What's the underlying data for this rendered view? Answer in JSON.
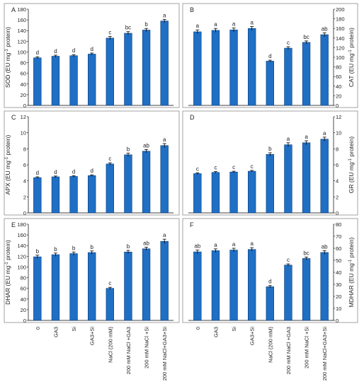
{
  "categories": [
    "0",
    "GA3",
    "Si",
    "GA3+Si",
    "NaCl (200 mM)",
    "200 mM NaCl +GA3",
    "200 mM NaCl +Si",
    "200 mM NaCl+GA3+Si"
  ],
  "colors": {
    "bar": "#1f6fc4",
    "bar_edge": "#0d3f7a",
    "frame": "#8c8c8c",
    "text": "#222222"
  },
  "chart_data": [
    {
      "type": "bar",
      "panel": "A",
      "side": "left",
      "ylabel_main": "SOD (EU mg",
      "ylabel_sup": "-1",
      "ylabel_tail": " protein)",
      "ylim": [
        0,
        180
      ],
      "yticks": [
        0,
        20,
        40,
        60,
        80,
        100,
        120,
        140,
        160,
        180
      ],
      "values": [
        89,
        92,
        93,
        96,
        126,
        135,
        141,
        158
      ],
      "errors": [
        2,
        2,
        2,
        2,
        3,
        3,
        3,
        3
      ],
      "letters": [
        "d",
        "d",
        "d",
        "d",
        "c",
        "bc",
        "b",
        "a"
      ]
    },
    {
      "type": "bar",
      "panel": "B",
      "side": "right",
      "ylabel_main": "CAT (EU mg",
      "ylabel_sup": "-1",
      "ylabel_tail": " protein)",
      "ylim": [
        0,
        200
      ],
      "yticks": [
        0,
        20,
        40,
        60,
        80,
        100,
        120,
        140,
        160,
        180,
        200
      ],
      "values": [
        153,
        156,
        157,
        160,
        92,
        119,
        131,
        147
      ],
      "errors": [
        4,
        4,
        4,
        4,
        2,
        3,
        3,
        4
      ],
      "letters": [
        "a",
        "a",
        "a",
        "a",
        "d",
        "c",
        "bc",
        "ab"
      ]
    },
    {
      "type": "bar",
      "panel": "C",
      "side": "left",
      "ylabel_main": "APX (EU mg",
      "ylabel_sup": "-1",
      "ylabel_tail": " protein)",
      "ylim": [
        0,
        12
      ],
      "yticks": [
        0,
        2,
        4,
        6,
        8,
        10,
        12
      ],
      "values": [
        4.4,
        4.5,
        4.55,
        4.65,
        6.1,
        7.25,
        7.7,
        8.4
      ],
      "errors": [
        0.1,
        0.1,
        0.1,
        0.1,
        0.15,
        0.2,
        0.2,
        0.25
      ],
      "letters": [
        "d",
        "d",
        "d",
        "d",
        "c",
        "b",
        "ab",
        "a"
      ]
    },
    {
      "type": "bar",
      "panel": "D",
      "side": "right",
      "ylabel_main": "GR (EU mg",
      "ylabel_sup": "-1",
      "ylabel_tail": " protein)",
      "ylim": [
        0,
        12
      ],
      "yticks": [
        0,
        2,
        4,
        6,
        8,
        10,
        12
      ],
      "values": [
        4.9,
        5.05,
        5.1,
        5.2,
        7.3,
        8.5,
        8.75,
        9.2
      ],
      "errors": [
        0.1,
        0.1,
        0.1,
        0.1,
        0.2,
        0.25,
        0.25,
        0.25
      ],
      "letters": [
        "c",
        "c",
        "c",
        "c",
        "b",
        "a",
        "a",
        "a"
      ]
    },
    {
      "type": "bar",
      "panel": "E",
      "side": "left",
      "ylabel_main": "DHAR (EU mg",
      "ylabel_sup": "-1",
      "ylabel_tail": " protein)",
      "ylim": [
        0,
        180
      ],
      "yticks": [
        0,
        20,
        40,
        60,
        80,
        100,
        120,
        140,
        160,
        180
      ],
      "values": [
        119,
        123,
        125,
        127,
        60,
        128,
        134,
        148
      ],
      "errors": [
        3,
        3,
        3,
        3,
        2,
        3,
        3,
        4
      ],
      "letters": [
        "b",
        "b",
        "b",
        "b",
        "c",
        "b",
        "ab",
        "a"
      ]
    },
    {
      "type": "bar",
      "panel": "F",
      "side": "right",
      "ylabel_main": "MDHAR (EU mg",
      "ylabel_sup": "-1",
      "ylabel_tail": " protein)",
      "ylim": [
        0,
        80
      ],
      "yticks": [
        0,
        10,
        20,
        30,
        40,
        50,
        60,
        70,
        80
      ],
      "values": [
        57,
        58,
        58.5,
        59,
        28,
        46,
        51.5,
        56.5
      ],
      "errors": [
        1.5,
        1.5,
        1.5,
        1.5,
        1,
        1,
        1.2,
        1.5
      ],
      "letters": [
        "ab",
        "a",
        "a",
        "a",
        "d",
        "c",
        "bc",
        "ab"
      ]
    }
  ]
}
